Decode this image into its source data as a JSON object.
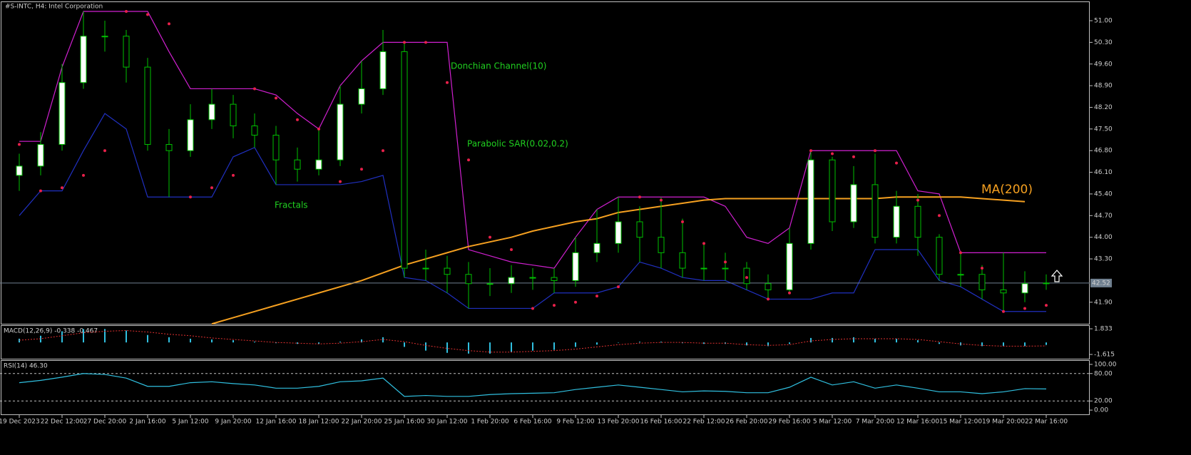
{
  "chart_data": [
    {
      "type": "candlestick",
      "title": "#S-INTC, H4:  Intel Corporation",
      "categories": [
        "19 Dec 2023",
        null,
        "22 Dec 12:00",
        null,
        "27 Dec 20:00",
        null,
        "2 Jan 16:00",
        null,
        "5 Jan 12:00",
        null,
        "9 Jan 20:00",
        null,
        "12 Jan 16:00",
        null,
        "18 Jan 12:00",
        null,
        "22 Jan 20:00",
        null,
        "25 Jan 16:00",
        null,
        "30 Jan 12:00",
        null,
        "1 Feb 20:00",
        null,
        "6 Feb 16:00",
        null,
        "9 Feb 12:00",
        null,
        "13 Feb 20:00",
        null,
        "16 Feb 16:00",
        null,
        "22 Feb 12:00",
        null,
        "26 Feb 20:00",
        null,
        "29 Feb 16:00",
        null,
        "5 Mar 12:00",
        null,
        "7 Mar 20:00",
        null,
        "12 Mar 16:00",
        null,
        "15 Mar 12:00",
        null,
        "19 Mar 20:00",
        null,
        "22 Mar 16:00"
      ],
      "open": [
        46.0,
        46.3,
        47.0,
        49.0,
        50.5,
        50.5,
        49.5,
        47.0,
        46.8,
        47.8,
        48.3,
        47.6,
        47.3,
        46.5,
        46.2,
        46.5,
        48.3,
        48.8,
        50.0,
        43.0,
        43.0,
        42.8,
        42.5,
        42.5,
        42.7,
        42.7,
        42.6,
        43.5,
        43.8,
        44.5,
        44.0,
        43.5,
        43.0,
        43.0,
        43.0,
        42.5,
        42.3,
        43.8,
        46.5,
        44.5,
        45.7,
        44.0,
        45.0,
        44.0,
        42.8,
        42.8,
        42.3,
        42.2,
        42.5
      ],
      "high": [
        46.7,
        47.4,
        49.6,
        51.3,
        51.0,
        50.7,
        49.8,
        47.5,
        48.3,
        48.8,
        48.6,
        48.0,
        47.6,
        46.9,
        47.5,
        48.9,
        49.7,
        50.7,
        50.3,
        43.6,
        43.4,
        43.2,
        43.0,
        43.1,
        43.0,
        43.0,
        44.0,
        44.9,
        45.3,
        45.0,
        45.3,
        44.6,
        43.8,
        43.5,
        43.2,
        42.8,
        44.3,
        46.8,
        46.6,
        46.3,
        46.7,
        45.5,
        45.4,
        44.1,
        43.5,
        43.1,
        43.5,
        42.9,
        42.8
      ],
      "low": [
        45.5,
        46.0,
        46.8,
        48.8,
        50.0,
        49.0,
        46.8,
        45.3,
        46.6,
        47.5,
        47.2,
        46.9,
        45.7,
        45.8,
        46.0,
        46.3,
        48.0,
        48.6,
        42.7,
        42.6,
        42.2,
        41.7,
        42.1,
        42.2,
        42.3,
        42.2,
        42.4,
        43.2,
        43.5,
        43.2,
        43.0,
        42.7,
        42.6,
        42.6,
        42.3,
        42.0,
        42.2,
        43.6,
        44.2,
        44.3,
        43.8,
        43.8,
        43.4,
        42.6,
        42.4,
        42.0,
        41.6,
        41.9,
        42.3
      ],
      "close": [
        46.3,
        47.0,
        49.0,
        50.5,
        50.5,
        49.5,
        47.0,
        46.8,
        47.8,
        48.3,
        47.6,
        47.3,
        46.5,
        46.2,
        46.5,
        48.3,
        48.8,
        50.0,
        43.0,
        43.0,
        42.8,
        42.5,
        42.5,
        42.7,
        42.7,
        42.6,
        43.5,
        43.8,
        44.5,
        44.0,
        43.5,
        43.0,
        43.0,
        43.0,
        42.5,
        42.3,
        43.8,
        46.5,
        44.5,
        45.7,
        44.0,
        45.0,
        44.0,
        42.8,
        42.8,
        42.3,
        42.2,
        42.5,
        42.52
      ],
      "up_color": "#ffffff",
      "down_color": "#000000",
      "candle_outline": "#00c000",
      "ylim": [
        41.18,
        51.6
      ],
      "yticks": [
        {
          "value": 51.0,
          "label": "51.00"
        },
        {
          "value": 50.3,
          "label": "50.30"
        },
        {
          "value": 49.6,
          "label": "49.60"
        },
        {
          "value": 48.9,
          "label": "48.90"
        },
        {
          "value": 48.2,
          "label": "48.20"
        },
        {
          "value": 47.5,
          "label": "47.50"
        },
        {
          "value": 46.8,
          "label": "46.80"
        },
        {
          "value": 46.1,
          "label": "46.10"
        },
        {
          "value": 45.4,
          "label": "45.40"
        },
        {
          "value": 44.7,
          "label": "44.70"
        },
        {
          "value": 44.0,
          "label": "44.00"
        },
        {
          "value": 43.3,
          "label": "43.30"
        },
        {
          "value": 41.9,
          "label": "41.90"
        }
      ],
      "current_price": {
        "value": 42.52,
        "label": "42.52"
      },
      "donchian": {
        "name": "Donchian Channel(10)",
        "upper": {
          "color": "#d020d0",
          "values": [
            47.1,
            47.1,
            49.5,
            51.3,
            51.3,
            51.3,
            51.3,
            50.0,
            48.8,
            48.8,
            48.8,
            48.8,
            48.6,
            48.0,
            47.5,
            48.9,
            49.7,
            50.3,
            50.3,
            50.3,
            50.3,
            43.6,
            43.4,
            43.2,
            43.1,
            43.0,
            44.0,
            44.9,
            45.3,
            45.3,
            45.3,
            45.3,
            45.3,
            45.0,
            44.0,
            43.8,
            44.3,
            46.8,
            46.8,
            46.8,
            46.8,
            46.8,
            45.5,
            45.4,
            43.5,
            43.5,
            43.5,
            43.5,
            43.5
          ]
        },
        "lower": {
          "color": "#2030c0",
          "values": [
            44.7,
            45.5,
            45.5,
            46.8,
            48.0,
            47.5,
            45.3,
            45.3,
            45.3,
            45.3,
            46.6,
            46.9,
            45.7,
            45.7,
            45.7,
            45.7,
            45.8,
            46.0,
            42.7,
            42.6,
            42.2,
            41.7,
            41.7,
            41.7,
            41.7,
            42.2,
            42.2,
            42.2,
            42.4,
            43.2,
            43.0,
            42.7,
            42.6,
            42.6,
            42.3,
            42.0,
            42.0,
            42.0,
            42.2,
            42.2,
            43.6,
            43.6,
            43.6,
            42.6,
            42.4,
            42.0,
            41.6,
            41.6,
            41.6
          ]
        }
      },
      "sar": {
        "name": "Parabolic SAR(0.02,0.2)",
        "color": "#e8204a",
        "values": [
          47.0,
          45.5,
          45.6,
          46.0,
          46.8,
          51.3,
          51.2,
          50.9,
          45.3,
          45.6,
          46.0,
          48.8,
          48.5,
          47.8,
          47.5,
          45.8,
          46.2,
          46.8,
          50.3,
          50.3,
          49.0,
          46.5,
          44.0,
          43.6,
          41.7,
          41.8,
          41.9,
          42.1,
          42.4,
          45.3,
          45.2,
          44.5,
          43.8,
          43.2,
          42.7,
          42.0,
          42.2,
          46.8,
          46.7,
          46.6,
          46.8,
          46.4,
          45.2,
          44.7,
          43.5,
          43.0,
          41.6,
          41.7,
          41.8
        ]
      },
      "ma": {
        "name": "MA(200)",
        "color": "#f5a020",
        "values": [
          null,
          null,
          null,
          null,
          null,
          null,
          null,
          null,
          null,
          41.2,
          41.4,
          41.6,
          41.8,
          42.0,
          42.2,
          42.4,
          42.6,
          42.85,
          43.1,
          43.3,
          43.5,
          43.7,
          43.85,
          44.0,
          44.2,
          44.35,
          44.5,
          44.6,
          44.8,
          44.9,
          45.0,
          45.1,
          45.2,
          45.25,
          45.25,
          45.25,
          45.25,
          45.25,
          45.25,
          45.25,
          45.25,
          45.3,
          45.3,
          45.3,
          45.3,
          45.25,
          45.2,
          45.15,
          null
        ]
      },
      "fractals_label": "Fractals"
    },
    {
      "type": "macd",
      "title": "MACD(12,26,9) -0.338 -0.467",
      "ylim": [
        -2.19,
        2.22
      ],
      "yticks": [
        1.833,
        -1.615
      ],
      "histogram": {
        "color": "#30c0e0",
        "values": [
          0.5,
          0.9,
          1.5,
          1.8,
          1.8,
          1.6,
          1.0,
          0.7,
          0.5,
          0.4,
          0.3,
          0.1,
          -0.1,
          -0.2,
          -0.2,
          0.1,
          0.4,
          0.7,
          -0.6,
          -1.1,
          -1.4,
          -1.5,
          -1.5,
          -1.3,
          -1.1,
          -1.0,
          -0.6,
          -0.3,
          0.0,
          0.1,
          0.1,
          -0.1,
          -0.2,
          -0.2,
          -0.4,
          -0.5,
          -0.2,
          0.6,
          0.6,
          0.7,
          0.5,
          0.5,
          0.3,
          -0.2,
          -0.4,
          -0.5,
          -0.5,
          -0.5,
          -0.338
        ]
      },
      "signal": {
        "color": "#e03030",
        "values": [
          0.3,
          0.5,
          0.9,
          1.3,
          1.5,
          1.6,
          1.4,
          1.1,
          0.9,
          0.6,
          0.4,
          0.2,
          0.0,
          -0.1,
          -0.2,
          -0.1,
          0.1,
          0.4,
          0.1,
          -0.4,
          -0.8,
          -1.1,
          -1.3,
          -1.3,
          -1.2,
          -1.1,
          -0.9,
          -0.6,
          -0.3,
          -0.1,
          0.0,
          0.0,
          -0.1,
          -0.1,
          -0.3,
          -0.4,
          -0.3,
          0.2,
          0.4,
          0.5,
          0.5,
          0.5,
          0.4,
          0.1,
          -0.2,
          -0.4,
          -0.5,
          -0.5,
          -0.467
        ]
      }
    },
    {
      "type": "rsi",
      "title": "RSI(14) 46.30",
      "ylim": [
        -10.8,
        107.7
      ],
      "yticks": [
        {
          "value": 100,
          "label": "100.00"
        },
        {
          "value": 80,
          "label": "80.00"
        },
        {
          "value": 20,
          "label": "20.00"
        },
        {
          "value": 0,
          "label": "0.00"
        }
      ],
      "level_lines": [
        80,
        20
      ],
      "series": [
        {
          "color": "#30c0e0",
          "values": [
            60,
            65,
            72,
            80,
            78,
            70,
            52,
            52,
            60,
            62,
            58,
            55,
            48,
            48,
            52,
            62,
            64,
            70,
            30,
            32,
            30,
            30,
            34,
            36,
            37,
            38,
            45,
            50,
            55,
            50,
            45,
            40,
            42,
            41,
            38,
            38,
            50,
            72,
            55,
            62,
            48,
            55,
            48,
            40,
            40,
            36,
            40,
            47,
            46.3
          ]
        }
      ]
    }
  ]
}
